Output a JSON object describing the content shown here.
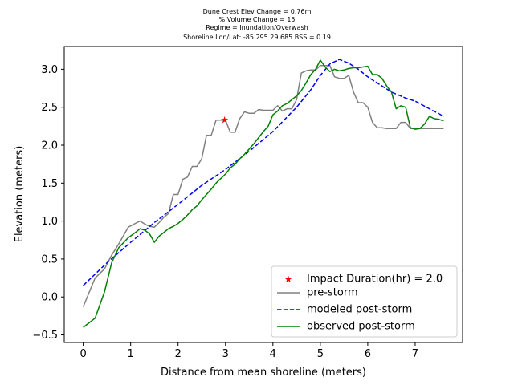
{
  "chart_data": {
    "type": "line",
    "title_lines": [
      "Dune Crest Elev Change = 0.76m",
      "% Volume Change = 15",
      "Regime = Inundation/Overwash",
      "Shoreline Lon/Lat: -85.295 29.685   BSS = 0.19"
    ],
    "xlabel": "Distance from mean shoreline (meters)",
    "ylabel": "Elevation (meters)",
    "xlim": [
      -0.4,
      8.0
    ],
    "ylim": [
      -0.6,
      3.3
    ],
    "xticks": [
      0,
      1,
      2,
      3,
      4,
      5,
      6,
      7
    ],
    "yticks": [
      -0.5,
      0.0,
      0.5,
      1.0,
      1.5,
      2.0,
      2.5,
      3.0
    ],
    "ytick_labels": [
      "−0.5",
      "0.0",
      "0.5",
      "1.0",
      "1.5",
      "2.0",
      "2.5",
      "3.0"
    ],
    "legend_position": "lower right",
    "legend": [
      {
        "label": "Impact Duration(hr) = 2.0",
        "marker": "star",
        "color": "#ff0000"
      },
      {
        "label": "pre-storm",
        "style": "solid",
        "color": "#808080"
      },
      {
        "label": "modeled post-storm",
        "style": "dashed",
        "color": "#0000ff"
      },
      {
        "label": "observed post-storm",
        "style": "solid",
        "color": "#008000"
      }
    ],
    "impact_point": {
      "x": 2.98,
      "y": 2.33
    },
    "series": [
      {
        "name": "pre-storm",
        "color": "#808080",
        "x": [
          0.0,
          0.25,
          0.45,
          0.6,
          0.75,
          0.95,
          1.1,
          1.2,
          1.3,
          1.4,
          1.5,
          1.6,
          1.7,
          1.8,
          1.9,
          2.0,
          2.1,
          2.2,
          2.3,
          2.4,
          2.5,
          2.6,
          2.7,
          2.8,
          2.9,
          3.0,
          3.1,
          3.2,
          3.3,
          3.4,
          3.5,
          3.6,
          3.7,
          3.8,
          3.9,
          4.0,
          4.1,
          4.2,
          4.3,
          4.4,
          4.5,
          4.6,
          4.7,
          4.8,
          4.9,
          5.0,
          5.1,
          5.2,
          5.3,
          5.4,
          5.5,
          5.6,
          5.7,
          5.8,
          5.9,
          6.0,
          6.1,
          6.2,
          6.3,
          6.4,
          6.5,
          6.6,
          6.7,
          6.8,
          6.9,
          7.0,
          7.1,
          7.2,
          7.3,
          7.4,
          7.5,
          7.6
        ],
        "y": [
          -0.13,
          0.25,
          0.37,
          0.55,
          0.7,
          0.92,
          0.97,
          1.0,
          0.96,
          0.93,
          0.92,
          0.98,
          1.05,
          1.1,
          1.35,
          1.35,
          1.55,
          1.58,
          1.72,
          1.72,
          1.82,
          2.13,
          2.13,
          2.33,
          2.33,
          2.33,
          2.17,
          2.17,
          2.35,
          2.44,
          2.42,
          2.42,
          2.47,
          2.46,
          2.46,
          2.46,
          2.52,
          2.45,
          2.48,
          2.48,
          2.6,
          2.95,
          2.98,
          2.99,
          2.99,
          3.05,
          3.05,
          3.05,
          2.9,
          2.88,
          2.88,
          2.92,
          2.7,
          2.56,
          2.56,
          2.5,
          2.3,
          2.23,
          2.23,
          2.22,
          2.22,
          2.22,
          2.3,
          2.3,
          2.22,
          2.22,
          2.22,
          2.22,
          2.22,
          2.22,
          2.22,
          2.22
        ],
        "style": "solid"
      },
      {
        "name": "modeled post-storm",
        "color": "#0000ff",
        "x": [
          0.0,
          0.5,
          1.0,
          1.5,
          2.0,
          2.5,
          3.0,
          3.5,
          4.0,
          4.5,
          4.8,
          5.0,
          5.2,
          5.4,
          5.6,
          5.8,
          6.0,
          6.2,
          6.5,
          6.8,
          7.0,
          7.3,
          7.6
        ],
        "y": [
          0.15,
          0.45,
          0.72,
          0.98,
          1.22,
          1.47,
          1.68,
          1.92,
          2.18,
          2.5,
          2.73,
          2.92,
          3.07,
          3.13,
          3.08,
          3.0,
          2.9,
          2.82,
          2.7,
          2.62,
          2.58,
          2.48,
          2.38
        ],
        "style": "dashed"
      },
      {
        "name": "observed post-storm",
        "color": "#008000",
        "x": [
          0.0,
          0.25,
          0.45,
          0.6,
          0.75,
          0.95,
          1.1,
          1.2,
          1.3,
          1.4,
          1.5,
          1.6,
          1.7,
          1.8,
          1.9,
          2.0,
          2.1,
          2.2,
          2.3,
          2.4,
          2.5,
          2.6,
          2.7,
          2.8,
          2.9,
          3.0,
          3.1,
          3.2,
          3.3,
          3.4,
          3.5,
          3.6,
          3.7,
          3.8,
          3.9,
          4.0,
          4.1,
          4.2,
          4.3,
          4.4,
          4.5,
          4.6,
          4.7,
          4.8,
          4.9,
          5.0,
          5.1,
          5.2,
          5.3,
          5.4,
          5.5,
          5.6,
          5.7,
          5.8,
          5.9,
          6.0,
          6.1,
          6.2,
          6.3,
          6.4,
          6.5,
          6.6,
          6.7,
          6.8,
          6.9,
          7.0,
          7.1,
          7.2,
          7.3,
          7.4,
          7.5,
          7.6
        ],
        "y": [
          -0.4,
          -0.28,
          0.07,
          0.45,
          0.65,
          0.78,
          0.85,
          0.9,
          0.88,
          0.83,
          0.72,
          0.8,
          0.85,
          0.9,
          0.93,
          0.97,
          1.02,
          1.08,
          1.15,
          1.2,
          1.28,
          1.35,
          1.42,
          1.5,
          1.56,
          1.62,
          1.7,
          1.75,
          1.82,
          1.88,
          1.95,
          2.02,
          2.1,
          2.18,
          2.25,
          2.4,
          2.45,
          2.52,
          2.55,
          2.6,
          2.65,
          2.72,
          2.82,
          2.93,
          3.0,
          3.12,
          3.03,
          2.97,
          3.0,
          2.98,
          2.99,
          3.01,
          3.02,
          3.02,
          3.03,
          3.04,
          2.93,
          2.93,
          2.88,
          2.78,
          2.7,
          2.48,
          2.52,
          2.5,
          2.23,
          2.21,
          2.22,
          2.28,
          2.38,
          2.35,
          2.34,
          2.32
        ],
        "style": "solid"
      }
    ]
  }
}
